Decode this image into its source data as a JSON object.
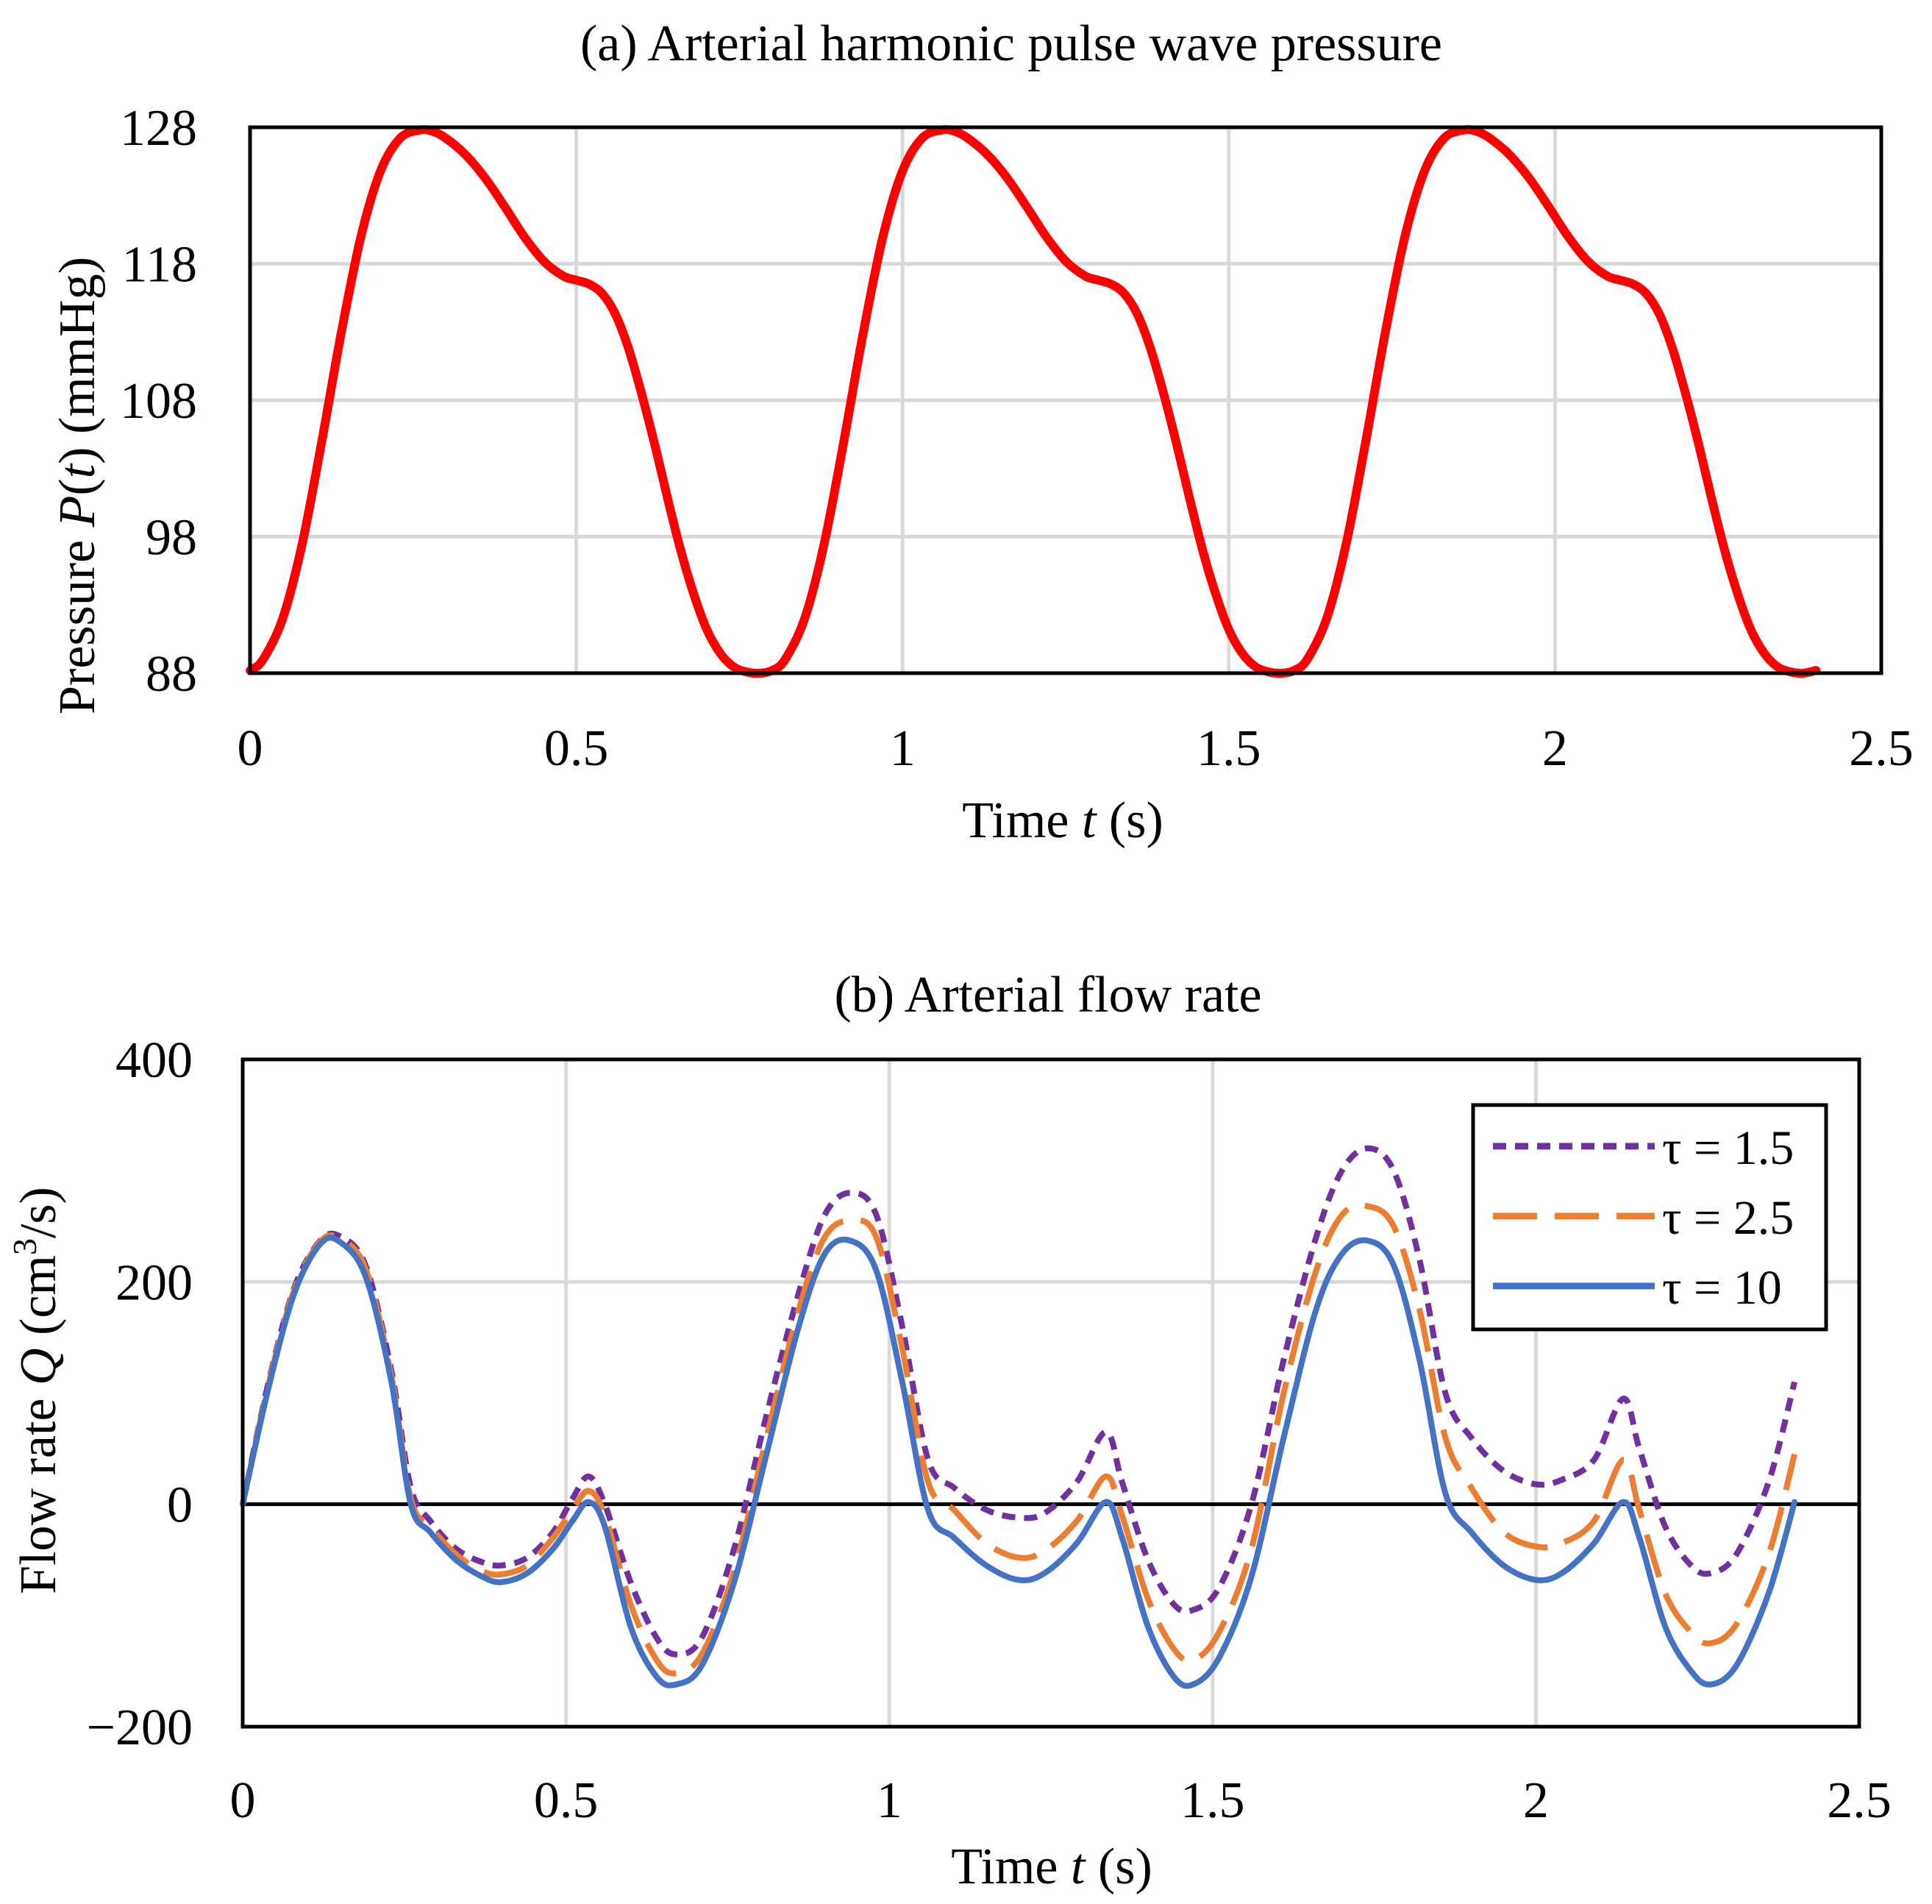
{
  "chart_data": [
    {
      "type": "line",
      "title": "(a) Arterial harmonic pulse wave pressure",
      "xlabel": {
        "prefix": "Time ",
        "var": "t",
        "suffix": " (s)"
      },
      "ylabel": {
        "prefix": "Pressure ",
        "var": "P",
        "open": "(",
        "arg": "t",
        "close": ")",
        "suffix": " (mmHg)"
      },
      "xlim": [
        0,
        2.5
      ],
      "ylim": [
        88,
        128
      ],
      "xticks": [
        0,
        0.5,
        1,
        1.5,
        2,
        2.5
      ],
      "xtick_labels": [
        "0",
        "0.5",
        "1",
        "1.5",
        "2",
        "2.5"
      ],
      "yticks": [
        88,
        98,
        108,
        118,
        128
      ],
      "ytick_labels": [
        "88",
        "98",
        "108",
        "118",
        "128"
      ],
      "grid": true,
      "period": 0.8,
      "t_end": 2.4,
      "series": [
        {
          "name": "P(t)",
          "color": "#ff0000",
          "t": [
            0,
            0.02,
            0.05,
            0.08,
            0.11,
            0.14,
            0.17,
            0.2,
            0.23,
            0.26,
            0.28,
            0.3,
            0.33,
            0.36,
            0.39,
            0.42,
            0.45,
            0.48,
            0.5,
            0.52,
            0.54,
            0.56,
            0.58,
            0.6,
            0.62,
            0.64,
            0.66,
            0.68,
            0.7,
            0.72,
            0.74,
            0.76,
            0.78,
            0.8
          ],
          "values": [
            88.2,
            89.0,
            92.0,
            97.5,
            105.0,
            113.0,
            120.0,
            124.8,
            127.2,
            127.8,
            127.7,
            127.2,
            126.0,
            124.3,
            122.2,
            120.0,
            118.2,
            117.1,
            116.8,
            116.5,
            115.8,
            114.3,
            111.8,
            108.5,
            104.8,
            100.8,
            97.0,
            93.8,
            91.2,
            89.5,
            88.5,
            88.1,
            88.0,
            88.2
          ]
        }
      ]
    },
    {
      "type": "line",
      "title": "(b) Arterial flow rate",
      "xlabel": {
        "prefix": "Time ",
        "var": "t",
        "suffix": " (s)"
      },
      "ylabel": {
        "prefix": "Flow rate ",
        "var": "Q",
        "unit": " (cm",
        "sup": "3",
        "unit_end": "/s)"
      },
      "xlim": [
        0,
        2.5
      ],
      "ylim": [
        -200,
        400
      ],
      "xticks": [
        0,
        0.5,
        1,
        1.5,
        2,
        2.5
      ],
      "xtick_labels": [
        "0",
        "0.5",
        "1",
        "1.5",
        "2",
        "2.5"
      ],
      "yticks": [
        -200,
        0,
        200,
        400
      ],
      "ytick_labels": [
        "−200",
        "0",
        "200",
        "400"
      ],
      "grid": true,
      "zero_line": true,
      "legend_position": "top-right",
      "series": [
        {
          "name": "τ = 1.5",
          "color": "#7030a0",
          "dash": "dot",
          "t": [
            0,
            0.04,
            0.08,
            0.12,
            0.15,
            0.19,
            0.23,
            0.26,
            0.29,
            0.33,
            0.37,
            0.4,
            0.44,
            0.48,
            0.51,
            0.535,
            0.56,
            0.6,
            0.64,
            0.67,
            0.71,
            0.76,
            0.81,
            0.86,
            0.9,
            0.94,
            0.98,
            1.02,
            1.06,
            1.1,
            1.15,
            1.2,
            1.24,
            1.29,
            1.335,
            1.36,
            1.4,
            1.44,
            1.47,
            1.51,
            1.56,
            1.61,
            1.66,
            1.7,
            1.74,
            1.78,
            1.82,
            1.86,
            1.9,
            1.95,
            2.0,
            2.04,
            2.09,
            2.135,
            2.16,
            2.2,
            2.24,
            2.27,
            2.31,
            2.36,
            2.4
          ],
          "values": [
            0,
            110,
            195,
            237,
            241,
            215,
            120,
            15,
            -15,
            -40,
            -52,
            -55,
            -48,
            -25,
            5,
            25,
            0,
            -70,
            -120,
            -135,
            -120,
            -40,
            80,
            190,
            260,
            280,
            260,
            160,
            40,
            15,
            -5,
            -12,
            -8,
            20,
            65,
            20,
            -50,
            -90,
            -95,
            -75,
            0,
            130,
            240,
            300,
            320,
            300,
            220,
            100,
            60,
            30,
            18,
            22,
            40,
            95,
            50,
            -20,
            -55,
            -62,
            -45,
            20,
            110
          ]
        },
        {
          "name": "τ = 2.5",
          "color": "#ed7d31",
          "dash": "dash",
          "t": [
            0,
            0.04,
            0.08,
            0.12,
            0.15,
            0.19,
            0.23,
            0.26,
            0.29,
            0.33,
            0.37,
            0.4,
            0.44,
            0.48,
            0.51,
            0.535,
            0.56,
            0.6,
            0.64,
            0.67,
            0.71,
            0.76,
            0.81,
            0.86,
            0.9,
            0.94,
            0.98,
            1.02,
            1.06,
            1.1,
            1.15,
            1.2,
            1.24,
            1.29,
            1.335,
            1.36,
            1.4,
            1.44,
            1.47,
            1.51,
            1.56,
            1.61,
            1.66,
            1.7,
            1.74,
            1.78,
            1.82,
            1.86,
            1.9,
            1.95,
            2.0,
            2.04,
            2.09,
            2.135,
            2.16,
            2.2,
            2.24,
            2.27,
            2.31,
            2.36,
            2.4
          ],
          "values": [
            0,
            108,
            193,
            236,
            239,
            212,
            115,
            5,
            -20,
            -45,
            -60,
            -63,
            -55,
            -30,
            -5,
            12,
            -10,
            -90,
            -140,
            -152,
            -135,
            -60,
            60,
            175,
            240,
            255,
            240,
            140,
            20,
            -5,
            -35,
            -48,
            -42,
            -15,
            25,
            -10,
            -85,
            -130,
            -140,
            -115,
            -40,
            100,
            210,
            260,
            268,
            250,
            175,
            60,
            15,
            -25,
            -38,
            -35,
            -15,
            40,
            -5,
            -80,
            -115,
            -125,
            -108,
            -45,
            45
          ]
        },
        {
          "name": "τ = 10",
          "color": "#4472c4",
          "dash": "solid",
          "t": [
            0,
            0.04,
            0.08,
            0.12,
            0.15,
            0.19,
            0.23,
            0.26,
            0.29,
            0.33,
            0.37,
            0.4,
            0.44,
            0.48,
            0.51,
            0.535,
            0.56,
            0.6,
            0.64,
            0.67,
            0.71,
            0.76,
            0.81,
            0.86,
            0.9,
            0.94,
            0.98,
            1.02,
            1.06,
            1.1,
            1.15,
            1.2,
            1.24,
            1.29,
            1.335,
            1.36,
            1.4,
            1.44,
            1.47,
            1.51,
            1.56,
            1.61,
            1.66,
            1.7,
            1.74,
            1.78,
            1.82,
            1.86,
            1.9,
            1.95,
            2.0,
            2.04,
            2.09,
            2.135,
            2.16,
            2.2,
            2.24,
            2.27,
            2.31,
            2.36,
            2.4
          ],
          "values": [
            0,
            105,
            190,
            234,
            236,
            205,
            110,
            0,
            -25,
            -50,
            -65,
            -70,
            -62,
            -40,
            -15,
            2,
            -20,
            -110,
            -155,
            -162,
            -145,
            -70,
            45,
            160,
            225,
            237,
            210,
            110,
            -5,
            -30,
            -55,
            -68,
            -62,
            -35,
            2,
            -30,
            -110,
            -155,
            -162,
            -138,
            -65,
            60,
            175,
            225,
            237,
            215,
            130,
            10,
            -25,
            -55,
            -68,
            -62,
            -35,
            2,
            -30,
            -110,
            -150,
            -162,
            -145,
            -80,
            2
          ]
        }
      ]
    }
  ]
}
